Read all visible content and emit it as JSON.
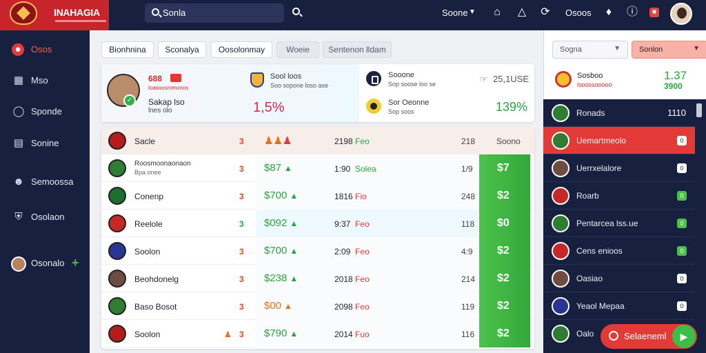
{
  "brand": {
    "name": "INAHAGIA"
  },
  "search": {
    "placeholder": "Sonla"
  },
  "topbar": {
    "season": "Soone",
    "odds": "Osoos"
  },
  "sidebar": {
    "items": [
      {
        "label": "Osos",
        "icon": "ball-icon",
        "active": true
      },
      {
        "label": "Mso",
        "icon": "grid-icon"
      },
      {
        "label": "Sponde",
        "icon": "shield-icon"
      },
      {
        "label": "Sonine",
        "icon": "document-icon"
      },
      {
        "label": "Semoossa",
        "icon": "user-icon"
      },
      {
        "label": "Osolaon",
        "icon": "club-crest-icon"
      },
      {
        "label": "Osonalo",
        "icon": "profile-icon"
      }
    ]
  },
  "tabs": [
    {
      "label": "Bionhnina"
    },
    {
      "label": "Sconalya"
    },
    {
      "label": "Oosolonmay"
    },
    {
      "label": "Woeie"
    },
    {
      "label": "Sentenon lldam"
    }
  ],
  "summary": {
    "code": "688",
    "code_sub": "loasoosmmonos",
    "player_name": "Sakap lso",
    "player_sub": "lnes olo",
    "value_red": "1,5%",
    "t1": "Sool loos",
    "t2": "Soo sopone loso ase",
    "r1": "Sooone",
    "r2": "Sop soose loo se",
    "r3": "Sor Oeonne",
    "r4": "Sop soos",
    "r_value": "25,1USE",
    "value_green": "139%"
  },
  "table": {
    "header": {
      "name": "Sacle",
      "rank": "3",
      "num": "2198",
      "tag": "Feo",
      "cnt": "218",
      "last": "Soono"
    },
    "rows": [
      {
        "name": "Roosmoonaonaon",
        "sub": "Bpa onee",
        "rank": "3",
        "price": "$87",
        "num": "1:90",
        "tag": "Solea",
        "cnt": "1/9",
        "pay": "$7",
        "logo": "#2e7d32",
        "orange": false
      },
      {
        "name": "Conenp",
        "rank": "3",
        "price": "$700",
        "num": "1816",
        "tag": "Fio",
        "cnt": "248",
        "pay": "$2",
        "logo": "#1b6e2c",
        "orange": false
      },
      {
        "name": "Reelole",
        "rank": "3",
        "price": "$092",
        "num": "9:37",
        "tag": "Feo",
        "cnt": "118",
        "pay": "$0",
        "logo": "#c62828",
        "orange": false,
        "rank_green": true
      },
      {
        "name": "Soolon",
        "rank": "3",
        "price": "$700",
        "num": "2:09",
        "tag": "Feo",
        "cnt": "4:9",
        "pay": "$2",
        "logo": "#283593",
        "orange": false
      },
      {
        "name": "Beohdonelg",
        "rank": "3",
        "price": "$238",
        "num": "2018",
        "tag": "Feo",
        "cnt": "214",
        "pay": "$2",
        "logo": "#6d4c41",
        "orange": false
      },
      {
        "name": "Baso Bosot",
        "rank": "3",
        "price": "$00",
        "num": "2098",
        "tag": "Feo",
        "cnt": "119",
        "pay": "$2",
        "logo": "#2e7d32",
        "orange": true
      },
      {
        "name": "Soolon",
        "rank": "3",
        "price": "$790",
        "num": "2014",
        "tag": "Fuo",
        "cnt": "116",
        "pay": "$2",
        "logo": "#b71c1c",
        "orange": false
      }
    ]
  },
  "right_panel": {
    "select_left": "Sogna",
    "select_right": "Sonlon",
    "featured": {
      "l1": "Sosboo",
      "l2": "lsoossooooo",
      "v1": "1.37",
      "v2": "3900"
    },
    "list": [
      {
        "label": "Ronads",
        "value": "1110",
        "logo": "#2e7d32"
      },
      {
        "label": "Uemartmeolo",
        "box": "0",
        "active": true,
        "logo": "#2e7d32"
      },
      {
        "label": "Uerrxelalore",
        "box": "0",
        "logo": "#6d4c41"
      },
      {
        "label": "Roarb",
        "box": "0",
        "box_green": true,
        "logo": "#c62828"
      },
      {
        "label": "Pentarcea lss.ue",
        "box": "0",
        "box_green": true,
        "logo": "#2e7d32"
      },
      {
        "label": "Cens enioos",
        "box": "0",
        "box_green": true,
        "logo": "#c62828"
      },
      {
        "label": "Oasiao",
        "box": "0",
        "logo": "#6d4c41"
      },
      {
        "label": "Yeaol Mepaa",
        "box": "0",
        "logo": "#283593"
      },
      {
        "label": "Oalo",
        "logo": "#2e7d32"
      }
    ],
    "button": "Selaeneml"
  },
  "colors": {
    "accent": "#e23a36",
    "navy": "#18203f",
    "green": "#2aa640"
  }
}
